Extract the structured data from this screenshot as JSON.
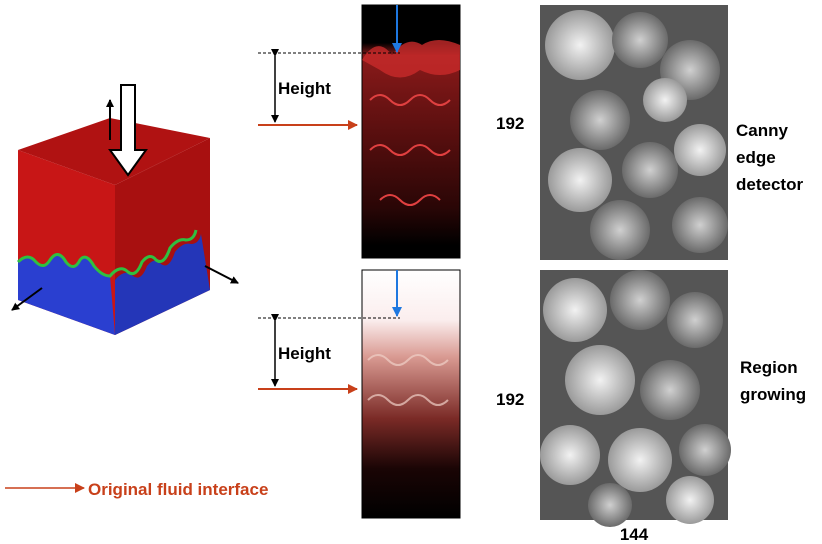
{
  "panels": [
    {
      "height_label": "Height",
      "size_label": "192",
      "method_lines": [
        "Canny",
        "edge",
        "detector"
      ]
    },
    {
      "height_label": "Height",
      "size_label": "192",
      "method_lines": [
        "Region",
        "growing"
      ]
    }
  ],
  "width_label": "144",
  "legend": "Original fluid interface"
}
